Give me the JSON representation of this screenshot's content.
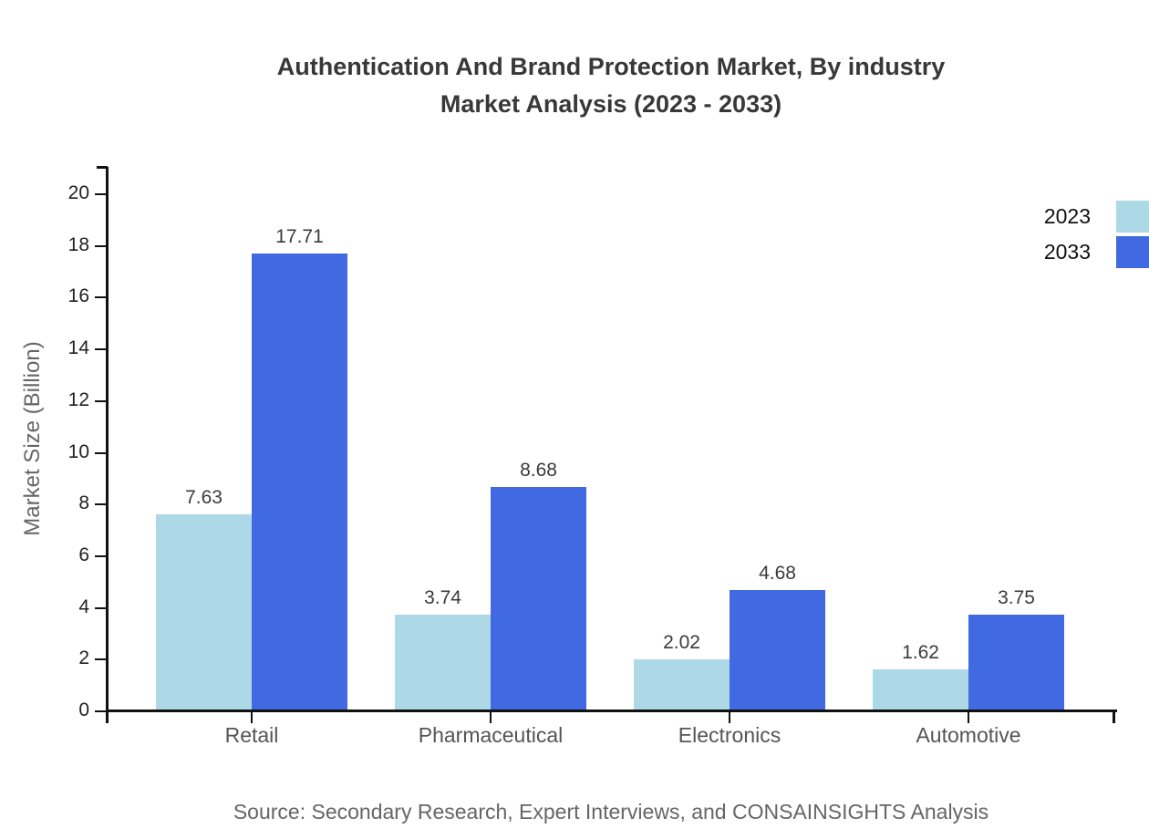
{
  "title": {
    "line1": "Authentication And Brand Protection Market, By industry",
    "line2": "Market Analysis (2023 - 2033)"
  },
  "source": "Source: Secondary Research, Expert Interviews, and CONSAINSIGHTS Analysis",
  "colors": {
    "series_2023": "#ADD8E6",
    "series_2033": "#4169E1",
    "axis": "#111111",
    "title_text": "#383838",
    "tick_label": "#222222",
    "category_label": "#555555",
    "value_label": "#3a3a3a",
    "muted_text": "#666666",
    "legend_text": "#111111"
  },
  "chart_data": {
    "type": "bar",
    "categories": [
      "Retail",
      "Pharmaceutical",
      "Electronics",
      "Automotive"
    ],
    "series": [
      {
        "name": "2023",
        "color": "#ADD8E6",
        "values": [
          7.63,
          3.74,
          2.02,
          1.62
        ]
      },
      {
        "name": "2033",
        "color": "#4169E1",
        "values": [
          17.71,
          8.68,
          4.68,
          3.75
        ]
      }
    ],
    "title": "Authentication And Brand Protection Market, By industry Market Analysis (2023 - 2033)",
    "xlabel": "",
    "ylabel": "Market Size (Billion)",
    "ylim": [
      0,
      20
    ],
    "ytick_step": 2,
    "grid": false,
    "value_labels": true,
    "value_label_format": "0.00",
    "legend_position": "top-right"
  }
}
